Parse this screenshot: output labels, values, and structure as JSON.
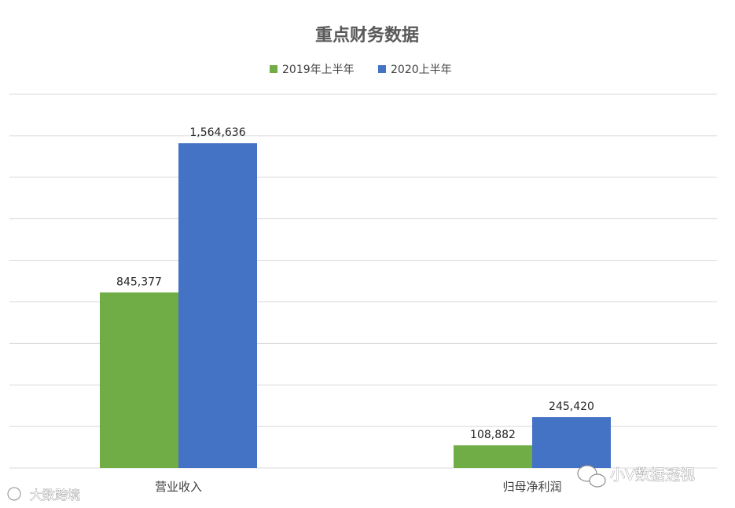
{
  "chart_data": {
    "type": "bar",
    "title": "重点财务数据",
    "categories": [
      "营业收入",
      "归母净利润"
    ],
    "series": [
      {
        "name": "2019年上半年",
        "color": "#70ad47",
        "values": [
          845377,
          108882
        ],
        "labels": [
          "845,377",
          "108,882"
        ]
      },
      {
        "name": "2020上半年",
        "color": "#4472c4",
        "values": [
          1564636,
          245420
        ],
        "labels": [
          "1,564,636",
          "245,420"
        ]
      }
    ],
    "ylim": [
      0,
      1800000
    ],
    "grid": true,
    "legend_position": "top",
    "xlabel": "",
    "ylabel": ""
  },
  "watermarks": {
    "left": "大数跨境",
    "right": "小V数据透视"
  }
}
